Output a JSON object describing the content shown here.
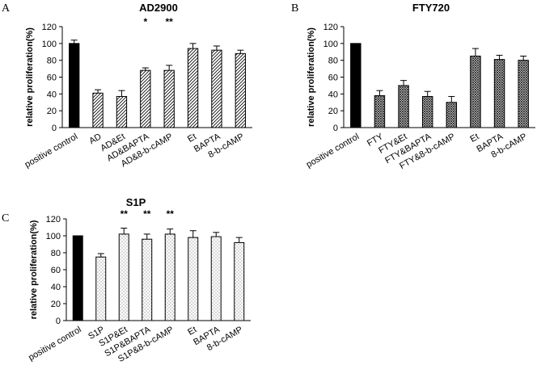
{
  "panel_labels": [
    "A",
    "B",
    "C"
  ],
  "chart_data": [
    {
      "type": "bar",
      "title": "AD2900",
      "ylabel": "relative proliferation(%)",
      "xlabel": "",
      "ylim": [
        0,
        120
      ],
      "yticks": [
        0,
        20,
        40,
        60,
        80,
        100,
        120
      ],
      "categories": [
        "positive control",
        "AD",
        "AD&Et",
        "AD&BAPTA",
        "AD&8-b-cAMP",
        "Et",
        "BAPTA",
        "8-b-cAMP"
      ],
      "values": [
        100,
        41,
        37,
        68,
        68,
        94,
        92,
        88
      ],
      "errors": [
        4,
        4,
        7,
        3,
        6,
        6,
        5,
        4
      ],
      "significance": [
        "",
        "",
        "",
        "*",
        "**",
        "",
        "",
        ""
      ],
      "fill_patterns": [
        "solid",
        "diagonal",
        "diagonal",
        "diagonal",
        "diagonal",
        "diagonal",
        "diagonal",
        "diagonal"
      ]
    },
    {
      "type": "bar",
      "title": "FTY720",
      "ylabel": "relative proliferation(%)",
      "xlabel": "",
      "ylim": [
        0,
        120
      ],
      "yticks": [
        0,
        20,
        40,
        60,
        80,
        100,
        120
      ],
      "categories": [
        "positive control",
        "FTY",
        "FTY&Et",
        "FTY&BAPTA",
        "FTY&8-b-cAMP",
        "Et",
        "BAPTA",
        "8-b-cAMP"
      ],
      "values": [
        100,
        38,
        50,
        37,
        30,
        85,
        81,
        80
      ],
      "errors": [
        0,
        6,
        6,
        6,
        7,
        9,
        5,
        5
      ],
      "significance": [
        "",
        "",
        "",
        "",
        "",
        "",
        "",
        ""
      ],
      "fill_patterns": [
        "solid",
        "crosshatch",
        "crosshatch",
        "crosshatch",
        "crosshatch",
        "crosshatch",
        "crosshatch",
        "crosshatch"
      ]
    },
    {
      "type": "bar",
      "title": "S1P",
      "ylabel": "relative proliferation(%)",
      "xlabel": "",
      "ylim": [
        0,
        120
      ],
      "yticks": [
        0,
        20,
        40,
        60,
        80,
        100,
        120
      ],
      "categories": [
        "positive control",
        "S1P",
        "S1P&Et",
        "S1P&BAPTA",
        "S1P&8-b-cAMP",
        "Et",
        "BAPTA",
        "8-b-cAMP"
      ],
      "values": [
        100,
        75,
        102,
        96,
        102,
        98,
        99,
        92
      ],
      "errors": [
        0,
        4,
        7,
        6,
        6,
        8,
        5,
        6
      ],
      "significance": [
        "",
        "",
        "**",
        "**",
        "**",
        "",
        "",
        ""
      ],
      "fill_patterns": [
        "solid",
        "dots",
        "dots",
        "dots",
        "dots",
        "dots",
        "dots",
        "dots"
      ]
    }
  ]
}
